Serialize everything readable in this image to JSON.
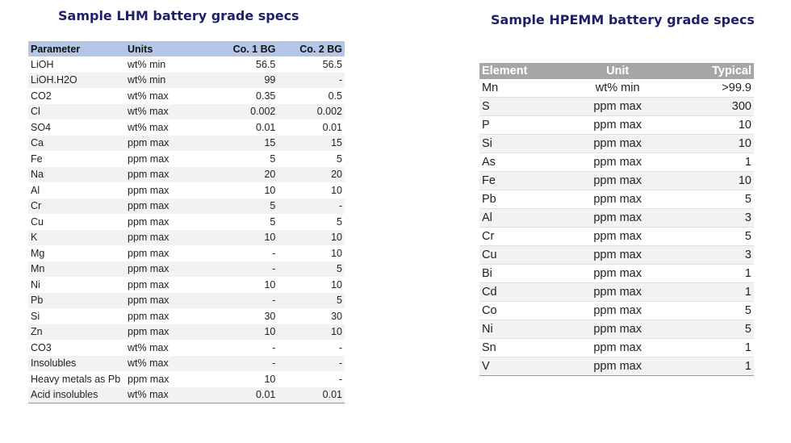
{
  "lhm": {
    "title": "Sample LHM battery grade specs",
    "headers": [
      "Parameter",
      "Units",
      "Co. 1 BG",
      "Co. 2 BG"
    ],
    "rows": [
      [
        "LiOH",
        "wt% min",
        "56.5",
        "56.5"
      ],
      [
        "LiOH.H2O",
        "wt% min",
        "99",
        "-"
      ],
      [
        "CO2",
        "wt% max",
        "0.35",
        "0.5"
      ],
      [
        "Cl",
        "wt% max",
        "0.002",
        "0.002"
      ],
      [
        "SO4",
        "wt% max",
        "0.01",
        "0.01"
      ],
      [
        "Ca",
        "ppm max",
        "15",
        "15"
      ],
      [
        "Fe",
        "ppm max",
        "5",
        "5"
      ],
      [
        "Na",
        "ppm max",
        "20",
        "20"
      ],
      [
        "Al",
        "ppm max",
        "10",
        "10"
      ],
      [
        "Cr",
        "ppm max",
        "5",
        "-"
      ],
      [
        "Cu",
        "ppm max",
        "5",
        "5"
      ],
      [
        "K",
        "ppm max",
        "10",
        "10"
      ],
      [
        "Mg",
        "ppm max",
        "-",
        "10"
      ],
      [
        "Mn",
        "ppm max",
        "-",
        "5"
      ],
      [
        "Ni",
        "ppm max",
        "10",
        "10"
      ],
      [
        "Pb",
        "ppm max",
        "-",
        "5"
      ],
      [
        "Si",
        "ppm max",
        "30",
        "30"
      ],
      [
        "Zn",
        "ppm max",
        "10",
        "10"
      ],
      [
        "CO3",
        "wt% max",
        "-",
        "-"
      ],
      [
        "Insolubles",
        "wt% max",
        "-",
        "-"
      ],
      [
        "Heavy metals as Pb",
        "ppm max",
        "10",
        "-"
      ],
      [
        "Acid insolubles",
        "wt% max",
        "0.01",
        "0.01"
      ]
    ]
  },
  "hpemm": {
    "title": "Sample HPEMM battery grade specs",
    "headers": [
      "Element",
      "Unit",
      "Typical"
    ],
    "rows": [
      [
        "Mn",
        "wt% min",
        ">99.9"
      ],
      [
        "S",
        "ppm max",
        "300"
      ],
      [
        "P",
        "ppm max",
        "10"
      ],
      [
        "Si",
        "ppm max",
        "10"
      ],
      [
        "As",
        "ppm max",
        "1"
      ],
      [
        "Fe",
        "ppm max",
        "10"
      ],
      [
        "Pb",
        "ppm max",
        "5"
      ],
      [
        "Al",
        "ppm max",
        "3"
      ],
      [
        "Cr",
        "ppm max",
        "5"
      ],
      [
        "Cu",
        "ppm max",
        "3"
      ],
      [
        "Bi",
        "ppm max",
        "1"
      ],
      [
        "Cd",
        "ppm max",
        "1"
      ],
      [
        "Co",
        "ppm max",
        "5"
      ],
      [
        "Ni",
        "ppm max",
        "5"
      ],
      [
        "Sn",
        "ppm max",
        "1"
      ],
      [
        "V",
        "ppm max",
        "1"
      ]
    ]
  }
}
